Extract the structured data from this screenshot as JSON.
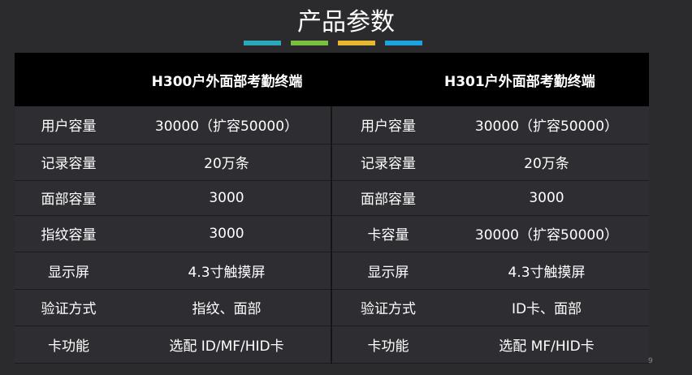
{
  "title": "产品参数",
  "accent_colors": [
    "#2aa9b9",
    "#7bbf3f",
    "#e7b72f",
    "#1ea3df"
  ],
  "header": [
    "",
    "H300户外面部考勤终端",
    "",
    "H301户外面部考勤终端"
  ],
  "rows": [
    [
      "用户容量",
      "30000（扩容50000）",
      "用户容量",
      "30000（扩容50000）"
    ],
    [
      "记录容量",
      "20万条",
      "记录容量",
      "20万条"
    ],
    [
      "面部容量",
      "3000",
      "面部容量",
      "3000"
    ],
    [
      "指纹容量",
      "3000",
      "卡容量",
      "30000（扩容50000）"
    ],
    [
      "显示屏",
      "4.3寸触摸屏",
      "显示屏",
      "4.3寸触摸屏"
    ],
    [
      "验证方式",
      "指纹、面部",
      "验证方式",
      "ID卡、面部"
    ],
    [
      "卡功能",
      "选配 ID/MF/HID卡",
      "卡功能",
      "选配 MF/HID卡"
    ]
  ],
  "page_number": "9"
}
